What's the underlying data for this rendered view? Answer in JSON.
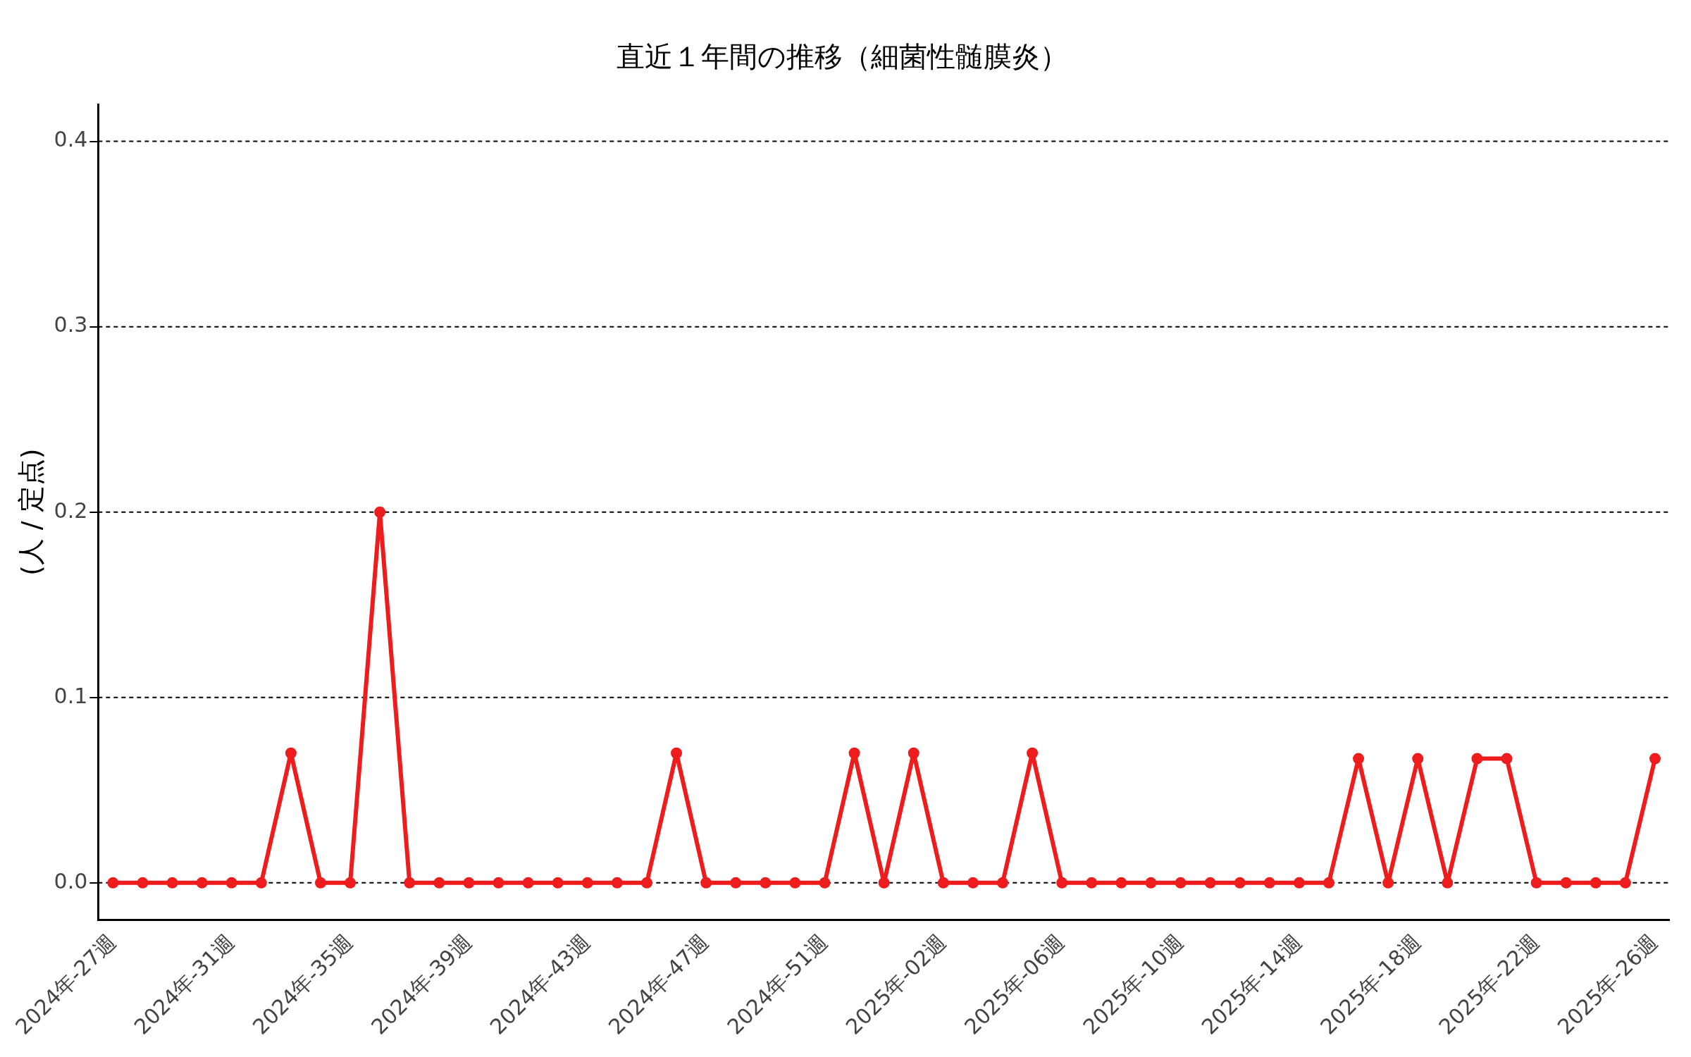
{
  "chart_data": {
    "type": "line",
    "title": "直近１年間の推移（細菌性髄膜炎）",
    "ylabel": "(人 / 定点)",
    "categories": [
      "2024年-27週",
      null,
      null,
      null,
      "2024年-31週",
      null,
      null,
      null,
      "2024年-35週",
      null,
      null,
      null,
      "2024年-39週",
      null,
      null,
      null,
      "2024年-43週",
      null,
      null,
      null,
      "2024年-47週",
      null,
      null,
      null,
      "2024年-51週",
      null,
      null,
      null,
      "2025年-02週",
      null,
      null,
      null,
      "2025年-06週",
      null,
      null,
      null,
      "2025年-10週",
      null,
      null,
      null,
      "2025年-14週",
      null,
      null,
      null,
      "2025年-18週",
      null,
      null,
      null,
      "2025年-22週",
      null,
      null,
      null,
      "2025年-26週"
    ],
    "series": [
      {
        "color": "#ee1c1c",
        "values": [
          0,
          0,
          0,
          0,
          0,
          0,
          0.07,
          0,
          0,
          0.2,
          0,
          0,
          0,
          0,
          0,
          0,
          0,
          0,
          0,
          0.07,
          0,
          0,
          0,
          0,
          0,
          0.07,
          0,
          0.07,
          0,
          0,
          0,
          0.07,
          0,
          0,
          0,
          0,
          0,
          0,
          0,
          0,
          0,
          0,
          0.067,
          0,
          0.067,
          0,
          0.067,
          0.067,
          0,
          0,
          0,
          0,
          0.067
        ]
      }
    ],
    "ylim": [
      -0.02,
      0.42
    ],
    "yticks": [
      {
        "value": 0,
        "label": "0.0"
      },
      {
        "value": 0.1,
        "label": "0.1"
      },
      {
        "value": 0.2,
        "label": "0.2"
      },
      {
        "value": 0.3,
        "label": "0.3"
      },
      {
        "value": 0.4,
        "label": "0.4"
      }
    ],
    "grid": "y",
    "legend": false,
    "marker": "circle",
    "line_style": "solid"
  }
}
